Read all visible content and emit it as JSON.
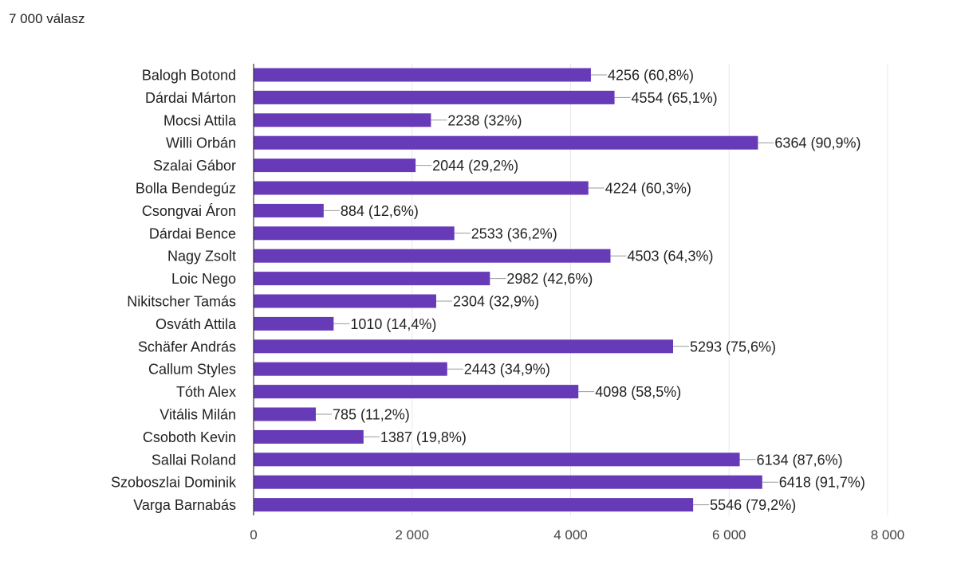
{
  "summary": {
    "responses": "7 000 válasz"
  },
  "colors": {
    "bar": "#673ab7",
    "grid": "#e8e8e8",
    "axis": "#333333",
    "leader": "#999999"
  },
  "chart_data": {
    "type": "bar",
    "orientation": "horizontal",
    "title": "",
    "xlabel": "",
    "ylabel": "",
    "xlim": [
      0,
      8000
    ],
    "grid": true,
    "legend": "none",
    "xticks": [
      {
        "value": 0,
        "label": "0"
      },
      {
        "value": 2000,
        "label": "2 000"
      },
      {
        "value": 4000,
        "label": "4 000"
      },
      {
        "value": 6000,
        "label": "6 000"
      },
      {
        "value": 8000,
        "label": "8 000"
      }
    ],
    "categories": [
      "Balogh Botond",
      "Dárdai Márton",
      "Mocsi Attila",
      "Willi Orbán",
      "Szalai Gábor",
      "Bolla Bendegúz",
      "Csongvai Áron",
      "Dárdai Bence",
      "Nagy Zsolt",
      "Loic Nego",
      "Nikitscher Tamás",
      "Osváth Attila",
      "Schäfer András",
      "Callum Styles",
      "Tóth Alex",
      "Vitális Milán",
      "Csoboth Kevin",
      "Sallai Roland",
      "Szoboszlai Dominik",
      "Varga Barnabás"
    ],
    "values": [
      4256,
      4554,
      2238,
      6364,
      2044,
      4224,
      884,
      2533,
      4503,
      2982,
      2304,
      1010,
      5293,
      2443,
      4098,
      785,
      1387,
      6134,
      6418,
      5546
    ],
    "labels": [
      "4256 (60,8%)",
      "4554 (65,1%)",
      "2238 (32%)",
      "6364 (90,9%)",
      "2044 (29,2%)",
      "4224 (60,3%)",
      "884 (12,6%)",
      "2533 (36,2%)",
      "4503 (64,3%)",
      "2982 (42,6%)",
      "2304 (32,9%)",
      "1010 (14,4%)",
      "5293 (75,6%)",
      "2443 (34,9%)",
      "4098 (58,5%)",
      "785 (11,2%)",
      "1387 (19,8%)",
      "6134 (87,6%)",
      "6418 (91,7%)",
      "5546 (79,2%)"
    ]
  }
}
